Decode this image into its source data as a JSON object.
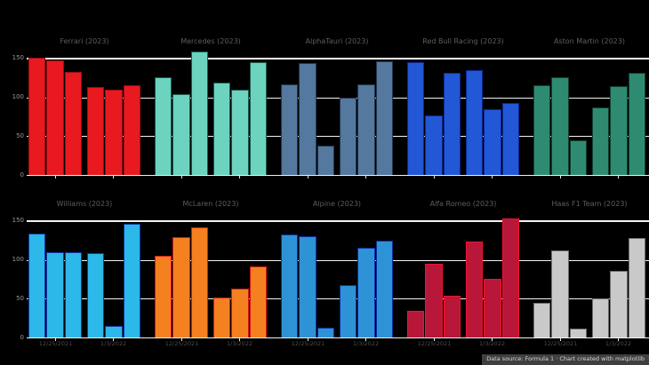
{
  "figure": {
    "background": "#000000",
    "grid_color": "#f2f2f2",
    "ylim": [
      0,
      160
    ],
    "yticks": [
      "150",
      "100",
      "50",
      "0"
    ],
    "ytick_values": [
      150,
      100,
      50,
      0
    ],
    "tick_label_color": "#9a9a9a",
    "title_color": "#5e5e5e",
    "xlabel_color": "#4e4e4e",
    "caption": "Data source: Formula 1 · Chart created with matplotlib",
    "grid_on": true,
    "legend": "none"
  },
  "chart_data": [
    {
      "type": "bar",
      "row": 0,
      "col": 0,
      "title": "Ferrari (2023)",
      "color": "#e8191f",
      "edge_color": "#990f14",
      "values": [
        151,
        147,
        133,
        113,
        110,
        116
      ]
    },
    {
      "type": "bar",
      "row": 0,
      "col": 1,
      "title": "Mercedes (2023)",
      "color": "#6cd3bf",
      "edge_color": "#1a5c50",
      "values": [
        126,
        104,
        159,
        119,
        110,
        145
      ]
    },
    {
      "type": "bar",
      "row": 0,
      "col": 2,
      "title": "AlphaTauri (2023)",
      "color": "#54789e",
      "edge_color": "#22364e",
      "values": [
        117,
        144,
        38,
        99,
        117,
        146
      ]
    },
    {
      "type": "bar",
      "row": 0,
      "col": 3,
      "title": "Red Bull Racing (2023)",
      "color": "#2257d6",
      "edge_color": "#0d2a96",
      "values": [
        145,
        77,
        131,
        135,
        85,
        93
      ]
    },
    {
      "type": "bar",
      "row": 0,
      "col": 4,
      "title": "Aston Martin (2023)",
      "color": "#2e8b72",
      "edge_color": "#123f30",
      "values": [
        116,
        126,
        45,
        87,
        114,
        131
      ]
    },
    {
      "type": "bar",
      "row": 1,
      "col": 0,
      "title": "Williams (2023)",
      "color": "#2cb8e8",
      "edge_color": "#1237a8",
      "values": [
        134,
        110,
        110,
        109,
        15,
        146
      ],
      "x_labels": [
        "12/25/2021",
        "1/3/2022"
      ]
    },
    {
      "type": "bar",
      "row": 1,
      "col": 1,
      "title": "McLaren (2023)",
      "color": "#f58020",
      "edge_color": "#d81818",
      "values": [
        105,
        129,
        142,
        52,
        63,
        92
      ],
      "x_labels": [
        "12/25/2021",
        "1/3/2022"
      ]
    },
    {
      "type": "bar",
      "row": 1,
      "col": 2,
      "title": "Alpine (2023)",
      "color": "#2e93d6",
      "edge_color": "#0c2fa0",
      "values": [
        133,
        130,
        13,
        68,
        116,
        125
      ],
      "x_labels": [
        "12/25/2021",
        "1/3/2022"
      ]
    },
    {
      "type": "bar",
      "row": 1,
      "col": 3,
      "title": "Alfa Romeo (2023)",
      "color": "#b81739",
      "edge_color": "#ef1430",
      "values": [
        34,
        95,
        54,
        124,
        76,
        153
      ],
      "x_labels": [
        "12/25/2021",
        "1/3/2022"
      ]
    },
    {
      "type": "bar",
      "row": 1,
      "col": 4,
      "title": "Haas F1 Team (2023)",
      "color": "#c9c9c9",
      "edge_color": "#6e6e6e",
      "values": [
        45,
        112,
        12,
        50,
        86,
        128
      ],
      "x_labels": [
        "12/25/2021",
        "1/3/2022"
      ]
    }
  ]
}
